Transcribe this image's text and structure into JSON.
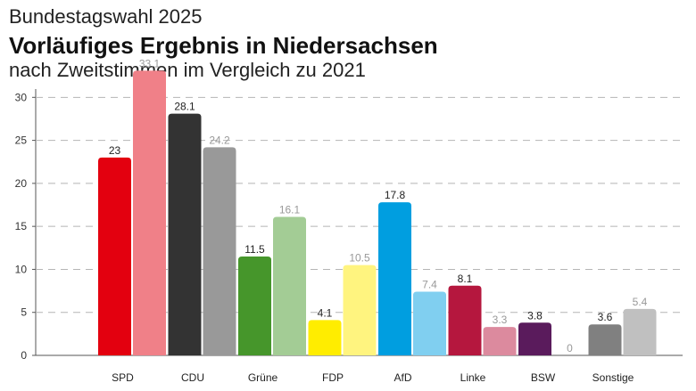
{
  "header": {
    "supertitle": "Bundestagswahl 2025",
    "title": "Vorläufiges Ergebnis in Niedersachsen",
    "subtitle": "nach Zweitstimmen im Vergleich zu 2021"
  },
  "chart_data": {
    "type": "bar",
    "categories": [
      "SPD",
      "CDU",
      "Grüne",
      "FDP",
      "AfD",
      "Linke",
      "BSW",
      "Sonstige"
    ],
    "series": [
      {
        "values": [
          23,
          28.1,
          11.5,
          4.1,
          17.8,
          8.1,
          3.8,
          3.6
        ],
        "colors": [
          "#e3000f",
          "#333333",
          "#46962b",
          "#ffed00",
          "#009ee0",
          "#b5173e",
          "#5a1b5c",
          "#808080"
        ],
        "label_color": "#222222"
      },
      {
        "values": [
          33.1,
          24.2,
          16.1,
          10.5,
          7.4,
          3.3,
          0,
          5.4
        ],
        "colors": [
          "#f08088",
          "#999999",
          "#a3cc95",
          "#fff47f",
          "#80cff0",
          "#dc8a9e",
          "#ad8dae",
          "#c0c0c0"
        ],
        "label_color": "#999999"
      }
    ],
    "ylim": [
      0,
      32
    ],
    "yticks": [
      0,
      5,
      10,
      15,
      20,
      25,
      30
    ],
    "grid": true,
    "legend": "none"
  }
}
